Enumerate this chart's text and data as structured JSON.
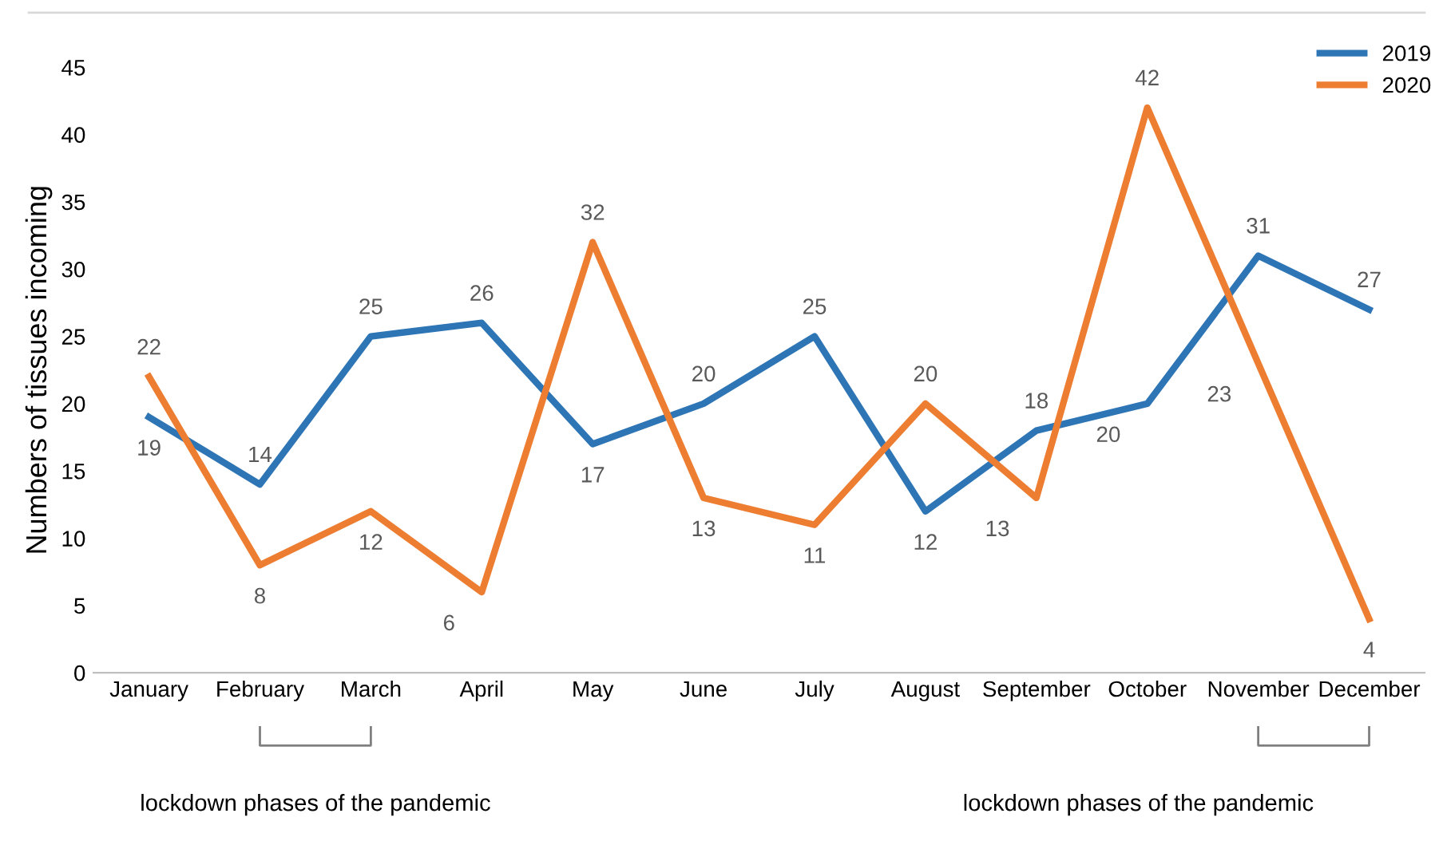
{
  "chart_data": {
    "type": "line",
    "ylabel": "Numbers of tissues incoming",
    "categories": [
      "January",
      "February",
      "March",
      "April",
      "May",
      "June",
      "July",
      "August",
      "September",
      "October",
      "November",
      "December"
    ],
    "series": [
      {
        "name": "2019",
        "color": "#2e75b6",
        "values": [
          19,
          14,
          25,
          26,
          17,
          20,
          25,
          12,
          18,
          20,
          31,
          27
        ]
      },
      {
        "name": "2020",
        "color": "#ed7d31",
        "values": [
          22,
          8,
          12,
          6,
          32,
          13,
          11,
          20,
          13,
          42,
          23,
          4
        ]
      }
    ],
    "ylim": [
      0,
      45
    ],
    "yticks": [
      0,
      5,
      10,
      15,
      20,
      25,
      30,
      35,
      40,
      45
    ],
    "data_labels": true,
    "legend": "top right",
    "grid": false,
    "marker": "none",
    "line_style": "solid",
    "annotations": [
      "lockdown phases of the pandemic",
      "lockdown phases of the pandemic"
    ]
  }
}
